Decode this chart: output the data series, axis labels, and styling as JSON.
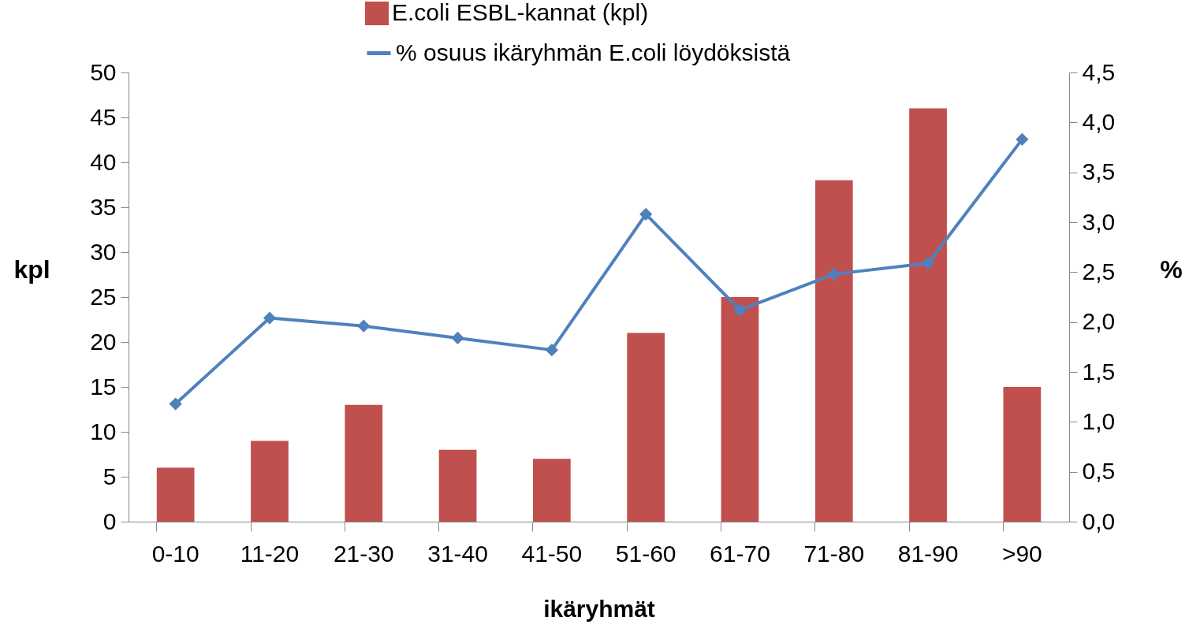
{
  "chart_data": {
    "type": "bar",
    "xlabel": "ikäryhmät",
    "ylabel": "kpl",
    "y2label": "%",
    "categories": [
      "0-10",
      "11-20",
      "21-30",
      "31-40",
      "41-50",
      "51-60",
      "61-70",
      "71-80",
      "81-90",
      ">90"
    ],
    "series": [
      {
        "name": "E.coli ESBL-kannat (kpl)",
        "color": "#c0504d",
        "values": [
          6,
          9,
          13,
          8,
          7,
          21,
          25,
          38,
          46,
          15
        ]
      },
      {
        "name": "% osuus ikäryhmän E.coli löydöksistä",
        "type": "line",
        "axis": "y2",
        "color": "#4f81bd",
        "values": [
          1.18,
          2.04,
          1.96,
          1.84,
          1.72,
          3.08,
          2.12,
          2.48,
          2.59,
          3.83
        ]
      }
    ],
    "ylim": [
      0,
      50
    ],
    "yticks": [
      0,
      5,
      10,
      15,
      20,
      25,
      30,
      35,
      40,
      45,
      50
    ],
    "y2lim": [
      0,
      4.5
    ],
    "y2ticks": [
      {
        "value": 0,
        "label": "0,0"
      },
      {
        "value": 0.5,
        "label": "0,5"
      },
      {
        "value": 1,
        "label": "1,0"
      },
      {
        "value": 1.5,
        "label": "1,5"
      },
      {
        "value": 2,
        "label": "2,0"
      },
      {
        "value": 2.5,
        "label": "2,5"
      },
      {
        "value": 3,
        "label": "3,0"
      },
      {
        "value": 3.5,
        "label": "3,5"
      },
      {
        "value": 4,
        "label": "4,0"
      },
      {
        "value": 4.5,
        "label": "4,5"
      }
    ],
    "legend": "top",
    "marker": "diamond",
    "line_style": "solid"
  }
}
